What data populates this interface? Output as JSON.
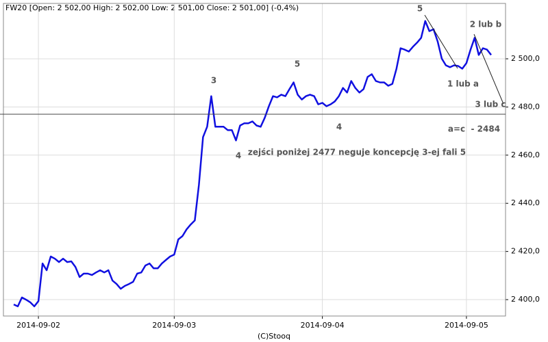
{
  "chart_data": {
    "type": "line",
    "title": "FW20 [Open: 2 502,00  High: 2 502,00  Low: 2 501,00  Close: 2 501,00] (-0,4%)",
    "footer": "(C)Stooq",
    "categories": [
      null,
      null,
      null,
      null,
      null,
      null,
      null,
      null,
      "2014-09-02",
      null,
      null,
      null,
      null,
      null,
      null,
      null,
      null,
      null,
      null,
      null,
      null,
      null,
      null,
      null,
      null,
      null,
      null,
      null,
      null,
      null,
      null,
      null,
      null,
      null,
      null,
      null,
      null,
      null,
      null,
      null,
      null,
      "2014-09-03",
      null,
      null,
      null,
      null,
      null,
      null,
      null,
      null,
      null,
      null,
      null,
      null,
      null,
      null,
      null,
      null,
      null,
      null,
      null,
      null,
      null,
      null,
      null,
      null,
      null,
      null,
      null,
      null,
      null,
      null,
      null,
      null,
      null,
      null,
      null,
      "2014-09-04",
      null,
      null,
      null,
      null,
      null,
      null,
      null,
      null,
      null,
      null,
      null,
      null,
      null,
      null,
      null,
      null,
      null,
      null,
      null,
      null,
      null,
      null,
      null,
      null,
      null,
      null,
      null,
      null,
      null,
      null,
      null,
      null,
      null,
      null,
      "2014-09-05",
      null,
      null,
      null,
      null,
      null,
      null,
      null,
      null,
      null
    ],
    "values": [
      null,
      null,
      2398.0,
      2397.2,
      2400.9,
      2400.0,
      2398.9,
      2397.2,
      2399.4,
      2415.0,
      2412.2,
      2417.9,
      2417.0,
      2415.6,
      2417.0,
      2415.6,
      2415.9,
      2413.6,
      2409.4,
      2410.8,
      2410.8,
      2410.2,
      2411.3,
      2412.2,
      2411.3,
      2412.2,
      2407.9,
      2406.5,
      2404.5,
      2405.7,
      2406.5,
      2407.4,
      2410.8,
      2411.3,
      2414.2,
      2415.0,
      2413.0,
      2413.0,
      2415.0,
      2416.5,
      2417.9,
      2418.7,
      2425.0,
      2426.4,
      2429.2,
      2431.2,
      2432.9,
      2447.7,
      2467.5,
      2471.8,
      2484.5,
      2471.8,
      2471.8,
      2471.8,
      2470.4,
      2470.4,
      2466.1,
      2472.3,
      2473.2,
      2473.2,
      2474.0,
      2472.3,
      2471.8,
      2475.5,
      2480.3,
      2484.5,
      2484.0,
      2485.1,
      2484.5,
      2487.4,
      2490.2,
      2485.1,
      2483.1,
      2484.5,
      2485.1,
      2484.5,
      2481.1,
      2481.7,
      2480.3,
      2481.1,
      2482.3,
      2484.5,
      2487.9,
      2486.0,
      2490.8,
      2487.9,
      2486.0,
      2487.4,
      2492.5,
      2493.6,
      2490.8,
      2490.2,
      2490.2,
      2488.8,
      2489.6,
      2495.9,
      2504.4,
      2503.8,
      2503.0,
      2505.0,
      2506.7,
      2508.7,
      2515.7,
      2511.5,
      2512.3,
      2507.2,
      2500.1,
      2497.3,
      2496.5,
      2497.3,
      2497.0,
      2495.9,
      2498.2,
      2503.8,
      2508.7,
      2501.6,
      2504.4,
      2503.8,
      2501.6,
      null,
      null,
      null
    ],
    "color": "#1010e0",
    "reference_line": 2477,
    "ylim": [
      2393.2,
      2523
    ],
    "yticks": [
      {
        "value": 2400,
        "label": "2 400,0"
      },
      {
        "value": 2420,
        "label": "2 420,0"
      },
      {
        "value": 2440,
        "label": "2 440,0"
      },
      {
        "value": 2460,
        "label": "2 460,0"
      },
      {
        "value": 2480,
        "label": "2 480,0"
      },
      {
        "value": 2500,
        "label": "2 500,0"
      }
    ],
    "grid": true,
    "annotations": [
      "3",
      "4",
      "5",
      "4",
      "5",
      "2 lub b",
      "1 lub a",
      "3 lub c",
      "a=c  - 2484",
      "zejści poniżej 2477 neguje koncepcję 3-ej fali 5"
    ]
  }
}
